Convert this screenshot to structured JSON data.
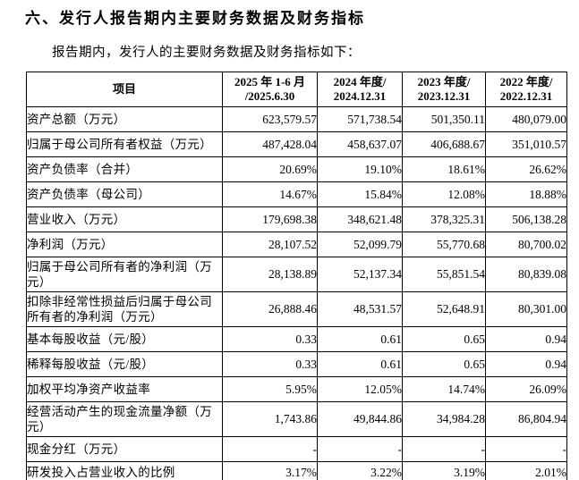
{
  "page": {
    "section_title": "六、发行人报告期内主要财务数据及财务指标",
    "intro": "报告期内，发行人的主要财务数据及财务指标如下："
  },
  "table": {
    "columns": [
      "项目",
      "2025 年 1-6 月\n/2025.6.30",
      "2024 年度/\n2024.12.31",
      "2023 年度/\n2023.12.31",
      "2022 年度/\n2022.12.31"
    ],
    "rows": [
      {
        "label": "资产总额（万元）",
        "values": [
          "623,579.57",
          "571,738.54",
          "501,350.11",
          "480,079.00"
        ]
      },
      {
        "label": "归属于母公司所有者权益（万元）",
        "values": [
          "487,428.04",
          "458,637.07",
          "406,688.67",
          "351,010.57"
        ]
      },
      {
        "label": "资产负债率（合并）",
        "values": [
          "20.69%",
          "19.10%",
          "18.61%",
          "26.62%"
        ]
      },
      {
        "label": "资产负债率（母公司）",
        "values": [
          "14.67%",
          "15.84%",
          "12.08%",
          "18.88%"
        ]
      },
      {
        "label": "营业收入（万元）",
        "values": [
          "179,698.38",
          "348,621.48",
          "378,325.31",
          "506,138.28"
        ]
      },
      {
        "label": "净利润（万元）",
        "values": [
          "28,107.52",
          "52,099.79",
          "55,770.68",
          "80,700.02"
        ]
      },
      {
        "label": "归属于母公司所有者的净利润（万元）",
        "values": [
          "28,138.89",
          "52,137.34",
          "55,851.54",
          "80,839.08"
        ]
      },
      {
        "label": "扣除非经常性损益后归属于母公司所有者的净利润（万元）",
        "values": [
          "26,888.46",
          "48,531.57",
          "52,648.91",
          "80,301.00"
        ]
      },
      {
        "label": "基本每股收益（元/股）",
        "values": [
          "0.33",
          "0.61",
          "0.65",
          "0.94"
        ]
      },
      {
        "label": "稀释每股收益（元/股）",
        "values": [
          "0.33",
          "0.61",
          "0.65",
          "0.94"
        ]
      },
      {
        "label": "加权平均净资产收益率",
        "values": [
          "5.95%",
          "12.05%",
          "14.74%",
          "26.09%"
        ]
      },
      {
        "label": "经营活动产生的现金流量净额（万元）",
        "values": [
          "1,743.86",
          "49,844.86",
          "34,984.28",
          "86,804.94"
        ]
      },
      {
        "label": "现金分红（万元）",
        "values": [
          "-",
          "-",
          "-",
          "-"
        ]
      },
      {
        "label": "研发投入占营业收入的比例",
        "values": [
          "3.17%",
          "3.22%",
          "3.19%",
          "2.01%"
        ]
      }
    ]
  }
}
